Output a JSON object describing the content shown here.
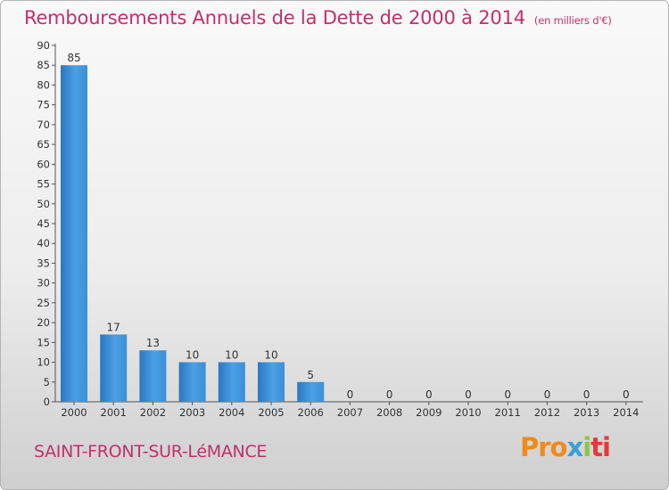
{
  "chart_data": {
    "type": "bar",
    "title": "Remboursements Annuels de la Dette de 2000 à 2014",
    "subtitle": "(en milliers d'€)",
    "categories": [
      "2000",
      "2001",
      "2002",
      "2003",
      "2004",
      "2005",
      "2006",
      "2007",
      "2008",
      "2009",
      "2010",
      "2011",
      "2012",
      "2013",
      "2014"
    ],
    "values": [
      85,
      17,
      13,
      10,
      10,
      10,
      5,
      0,
      0,
      0,
      0,
      0,
      0,
      0,
      0
    ],
    "ylim": [
      0,
      90
    ],
    "yticks": [
      0,
      5,
      10,
      15,
      20,
      25,
      30,
      35,
      40,
      45,
      50,
      55,
      60,
      65,
      70,
      75,
      80,
      85,
      90
    ],
    "grid": false,
    "bar_color": "#3b8fd6",
    "xlabel": "",
    "ylabel": ""
  },
  "commune": "SAINT-FRONT-SUR-LéMANCE",
  "logo": {
    "part1": "Pro",
    "part2": "x",
    "part3": "i",
    "part4": "ti",
    "colors": [
      "#f08a1c",
      "#3aa0d8",
      "#8dc63f",
      "#e23b3b"
    ]
  },
  "colors": {
    "accent": "#c0306a"
  }
}
